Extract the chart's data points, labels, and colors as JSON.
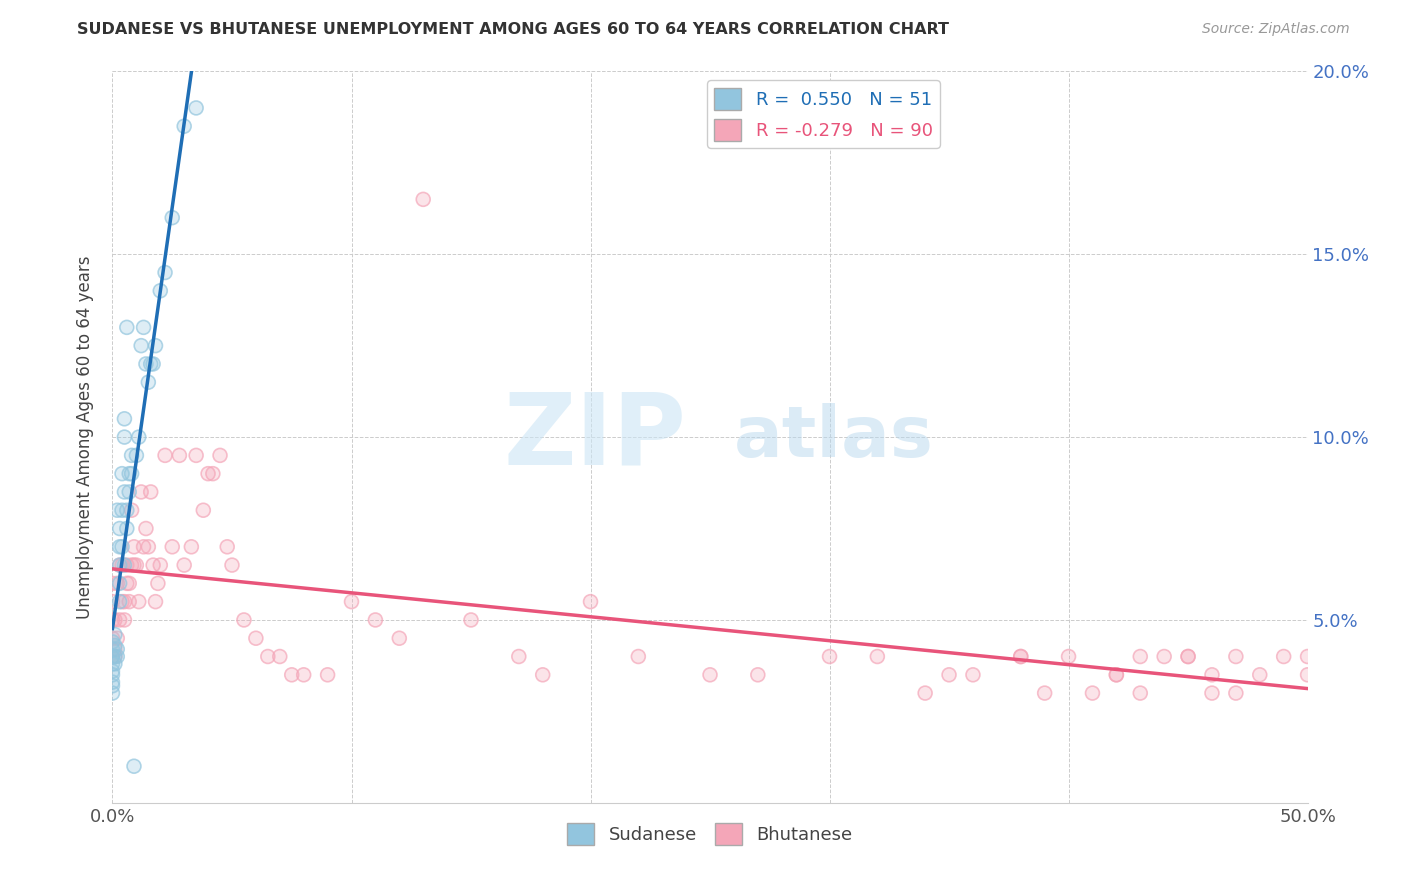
{
  "title": "SUDANESE VS BHUTANESE UNEMPLOYMENT AMONG AGES 60 TO 64 YEARS CORRELATION CHART",
  "source": "Source: ZipAtlas.com",
  "ylabel": "Unemployment Among Ages 60 to 64 years",
  "xlim": [
    0.0,
    0.5
  ],
  "ylim": [
    0.0,
    0.2
  ],
  "xticks": [
    0.0,
    0.1,
    0.2,
    0.3,
    0.4,
    0.5
  ],
  "yticks": [
    0.0,
    0.05,
    0.1,
    0.15,
    0.2
  ],
  "xticklabels_bottom": [
    "0.0%",
    "",
    "",
    "",
    "",
    "50.0%"
  ],
  "yticklabels_right": [
    "",
    "5.0%",
    "10.0%",
    "15.0%",
    "20.0%"
  ],
  "sudanese_color": "#92c5de",
  "bhutanese_color": "#f4a6b8",
  "sudanese_R": 0.55,
  "sudanese_N": 51,
  "bhutanese_R": -0.279,
  "bhutanese_N": 90,
  "sudanese_line_color": "#1f6eb5",
  "bhutanese_line_color": "#e8547a",
  "watermark_zip": "ZIP",
  "watermark_atlas": "atlas",
  "sudanese_x": [
    0.0,
    0.0,
    0.0,
    0.0,
    0.0,
    0.0,
    0.0,
    0.0,
    0.0,
    0.0,
    0.001,
    0.001,
    0.001,
    0.001,
    0.002,
    0.002,
    0.002,
    0.003,
    0.003,
    0.003,
    0.003,
    0.003,
    0.004,
    0.004,
    0.004,
    0.005,
    0.005,
    0.005,
    0.005,
    0.006,
    0.006,
    0.006,
    0.007,
    0.007,
    0.008,
    0.008,
    0.009,
    0.01,
    0.011,
    0.012,
    0.013,
    0.014,
    0.015,
    0.016,
    0.017,
    0.018,
    0.02,
    0.022,
    0.025,
    0.03,
    0.035
  ],
  "sudanese_y": [
    0.038,
    0.04,
    0.042,
    0.044,
    0.04,
    0.036,
    0.035,
    0.033,
    0.03,
    0.032,
    0.038,
    0.04,
    0.043,
    0.046,
    0.04,
    0.042,
    0.08,
    0.055,
    0.06,
    0.065,
    0.07,
    0.075,
    0.07,
    0.08,
    0.09,
    0.065,
    0.085,
    0.1,
    0.105,
    0.075,
    0.08,
    0.13,
    0.085,
    0.09,
    0.09,
    0.095,
    0.01,
    0.095,
    0.1,
    0.125,
    0.13,
    0.12,
    0.115,
    0.12,
    0.12,
    0.125,
    0.14,
    0.145,
    0.16,
    0.185,
    0.19
  ],
  "bhutanese_x": [
    0.0,
    0.0,
    0.0,
    0.0,
    0.0,
    0.001,
    0.001,
    0.001,
    0.002,
    0.002,
    0.003,
    0.003,
    0.004,
    0.004,
    0.005,
    0.005,
    0.006,
    0.006,
    0.007,
    0.007,
    0.008,
    0.008,
    0.009,
    0.009,
    0.01,
    0.011,
    0.012,
    0.013,
    0.014,
    0.015,
    0.016,
    0.017,
    0.018,
    0.019,
    0.02,
    0.022,
    0.025,
    0.028,
    0.03,
    0.033,
    0.035,
    0.038,
    0.04,
    0.042,
    0.045,
    0.048,
    0.05,
    0.055,
    0.06,
    0.065,
    0.07,
    0.075,
    0.08,
    0.09,
    0.1,
    0.11,
    0.12,
    0.13,
    0.15,
    0.17,
    0.18,
    0.2,
    0.22,
    0.25,
    0.27,
    0.3,
    0.32,
    0.35,
    0.38,
    0.4,
    0.42,
    0.43,
    0.44,
    0.45,
    0.46,
    0.47,
    0.48,
    0.49,
    0.5,
    0.5,
    0.38,
    0.42,
    0.45,
    0.46,
    0.47,
    0.34,
    0.36,
    0.39,
    0.41,
    0.43
  ],
  "bhutanese_y": [
    0.05,
    0.045,
    0.04,
    0.055,
    0.06,
    0.04,
    0.042,
    0.05,
    0.045,
    0.06,
    0.05,
    0.065,
    0.055,
    0.065,
    0.05,
    0.055,
    0.06,
    0.065,
    0.055,
    0.06,
    0.065,
    0.08,
    0.065,
    0.07,
    0.065,
    0.055,
    0.085,
    0.07,
    0.075,
    0.07,
    0.085,
    0.065,
    0.055,
    0.06,
    0.065,
    0.095,
    0.07,
    0.095,
    0.065,
    0.07,
    0.095,
    0.08,
    0.09,
    0.09,
    0.095,
    0.07,
    0.065,
    0.05,
    0.045,
    0.04,
    0.04,
    0.035,
    0.035,
    0.035,
    0.055,
    0.05,
    0.045,
    0.165,
    0.05,
    0.04,
    0.035,
    0.055,
    0.04,
    0.035,
    0.035,
    0.04,
    0.04,
    0.035,
    0.04,
    0.04,
    0.035,
    0.04,
    0.04,
    0.04,
    0.035,
    0.04,
    0.035,
    0.04,
    0.035,
    0.04,
    0.04,
    0.035,
    0.04,
    0.03,
    0.03,
    0.03,
    0.035,
    0.03,
    0.03,
    0.03
  ]
}
